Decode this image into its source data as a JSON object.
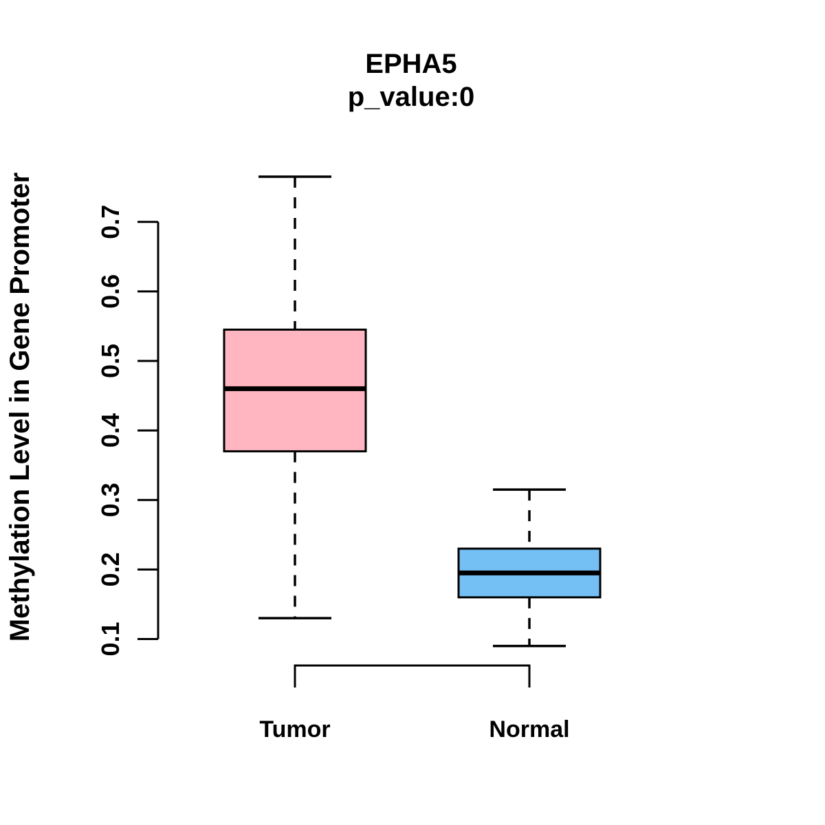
{
  "chart_data": {
    "type": "boxplot",
    "title": "EPHA5",
    "subtitle": "p_value:0",
    "ylabel": "Methylation Level in Gene Promoter",
    "xlabel": "",
    "categories": [
      "Tumor",
      "Normal"
    ],
    "y_ticks": [
      "0.1",
      "0.2",
      "0.3",
      "0.4",
      "0.5",
      "0.6",
      "0.7"
    ],
    "y_range": [
      0.1,
      0.7
    ],
    "grid": false,
    "legend": "none",
    "line_color": "#000000",
    "background_color": "#FFFFFF",
    "series": [
      {
        "name": "Tumor",
        "fill_color": "#FFB6C1",
        "stats": {
          "whisker_low": 0.13,
          "q1": 0.37,
          "median": 0.46,
          "q3": 0.545,
          "whisker_high": 0.765
        },
        "outliers": []
      },
      {
        "name": "Normal",
        "fill_color": "#74BFF4",
        "stats": {
          "whisker_low": 0.09,
          "q1": 0.16,
          "median": 0.195,
          "q3": 0.23,
          "whisker_high": 0.315
        },
        "outliers": []
      }
    ]
  }
}
